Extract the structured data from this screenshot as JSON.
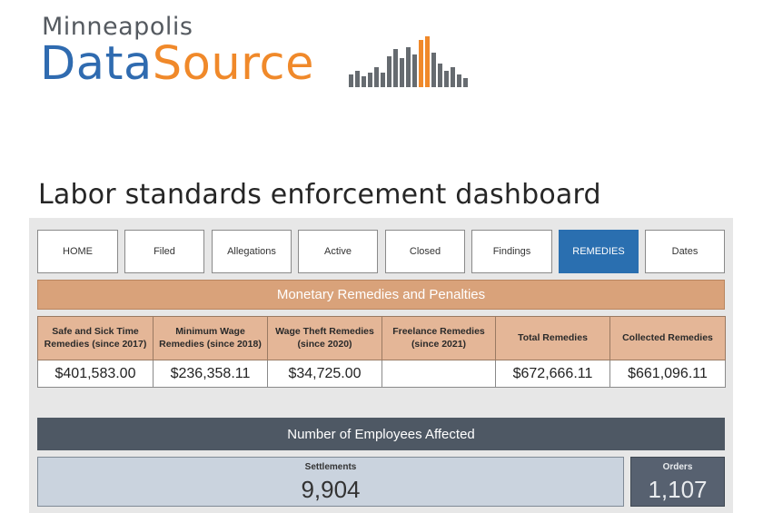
{
  "logo": {
    "line1": "Minneapolis",
    "data_text": "Data",
    "source_text": "Source",
    "bars_icon": "bar-chart-logo-icon",
    "colors": {
      "blue": "#2f6bb0",
      "orange": "#f0892a",
      "gray": "#555a60"
    }
  },
  "page_title": "Labor standards enforcement dashboard",
  "nav": {
    "items": [
      {
        "label": "HOME"
      },
      {
        "label": "Filed"
      },
      {
        "label": "Allegations"
      },
      {
        "label": "Active"
      },
      {
        "label": "Closed"
      },
      {
        "label": "Findings"
      },
      {
        "label": "REMEDIES"
      },
      {
        "label": "Dates"
      }
    ],
    "active_item": "REMEDIES",
    "active_color": "#2a6fb0"
  },
  "remedies": {
    "title": "Monetary Remedies and Penalties",
    "columns": [
      {
        "header": "Safe and Sick Time Remedies (since 2017)",
        "value": "$401,583.00"
      },
      {
        "header": "Minimum Wage Remedies (since 2018)",
        "value": "$236,358.11"
      },
      {
        "header": "Wage Theft Remedies (since 2020)",
        "value": "$34,725.00"
      },
      {
        "header": "Freelance Remedies (since 2021)",
        "value": ""
      },
      {
        "header": "Total Remedies",
        "value": "$672,666.11"
      },
      {
        "header": "Collected Remedies",
        "value": "$661,096.11"
      }
    ],
    "banner_color": "#d9a27a"
  },
  "employees": {
    "title": "Number of Employees Affected",
    "settlements": {
      "label": "Settlements",
      "value": "9,904"
    },
    "orders": {
      "label": "Orders",
      "value": "1,107"
    },
    "banner_color": "#4e5864"
  }
}
